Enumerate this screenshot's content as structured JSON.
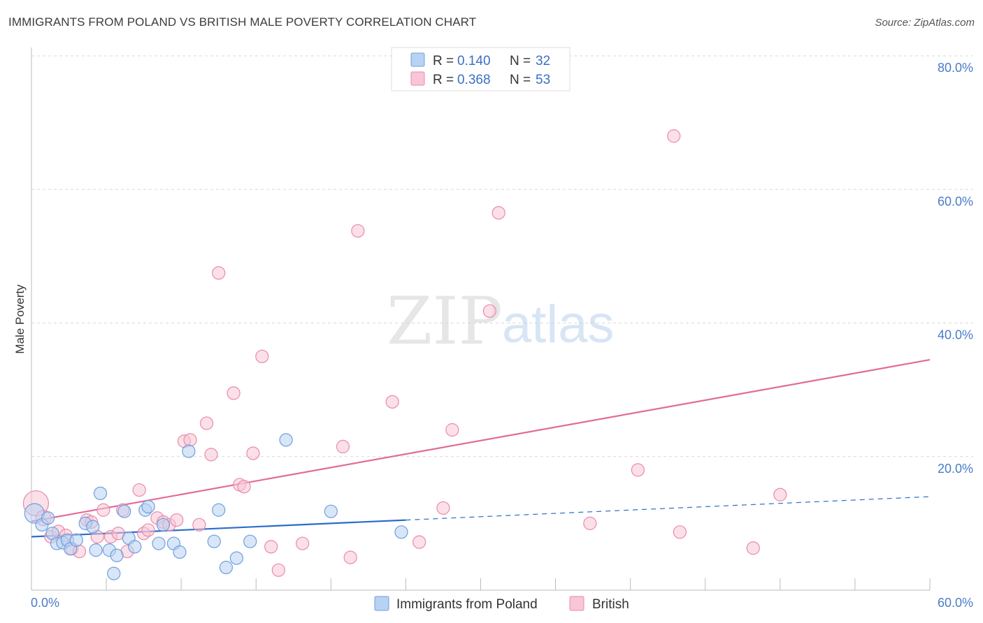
{
  "title": "IMMIGRANTS FROM POLAND VS BRITISH MALE POVERTY CORRELATION CHART",
  "source": "Source: ZipAtlas.com",
  "watermark": {
    "zip": "ZIP",
    "atlas": "atlas"
  },
  "colors": {
    "blue_fill": "#b8d2f3",
    "blue_stroke": "#6f9fdc",
    "blue_line": "#2a6ccc",
    "pink_fill": "#f8c6d6",
    "pink_stroke": "#e98aab",
    "pink_line": "#e26b98",
    "tick_label": "#4a7cc7",
    "grid": "#d8d8d8"
  },
  "legend": {
    "rows": [
      {
        "r_label": "R =",
        "r_value": "0.140",
        "n_label": "N =",
        "n_value": "32",
        "series": "blue"
      },
      {
        "r_label": "R =",
        "r_value": "0.368",
        "n_label": "N =",
        "n_value": "53",
        "series": "pink"
      }
    ]
  },
  "bottom_legend": [
    {
      "label": "Immigrants from Poland",
      "series": "blue"
    },
    {
      "label": "British",
      "series": "pink"
    }
  ],
  "chart_data": {
    "type": "scatter",
    "title": "IMMIGRANTS FROM POLAND VS BRITISH MALE POVERTY CORRELATION CHART",
    "xlabel": "",
    "ylabel": "Male Poverty",
    "xlim": [
      0,
      60
    ],
    "ylim": [
      0,
      80
    ],
    "x_tick_labels": [
      "0.0%",
      "60.0%"
    ],
    "y_ticks": [
      20,
      40,
      60,
      80
    ],
    "y_tick_labels": [
      "20.0%",
      "40.0%",
      "60.0%",
      "80.0%"
    ],
    "grid": true,
    "legend_position": "top-center",
    "series": [
      {
        "name": "Immigrants from Poland",
        "color": "#6f9fdc",
        "r": 0.14,
        "n": 32,
        "trend": {
          "x0": 0,
          "y0": 8.0,
          "x1": 25,
          "y1": 10.5,
          "dash_to_x": 60,
          "dash_to_y": 14.0
        },
        "points": [
          [
            0.2,
            11.5,
            14
          ],
          [
            0.7,
            9.8,
            9
          ],
          [
            1.1,
            10.8,
            9
          ],
          [
            1.4,
            8.5,
            9
          ],
          [
            1.7,
            7.0,
            9
          ],
          [
            2.1,
            7.1,
            9
          ],
          [
            2.4,
            7.5,
            9
          ],
          [
            2.6,
            6.2,
            9
          ],
          [
            3.0,
            7.5,
            9
          ],
          [
            3.6,
            10.0,
            9
          ],
          [
            4.1,
            9.5,
            9
          ],
          [
            4.3,
            6.0,
            9
          ],
          [
            4.6,
            14.5,
            9
          ],
          [
            5.2,
            6.0,
            9
          ],
          [
            5.5,
            2.5,
            9
          ],
          [
            5.7,
            5.2,
            9
          ],
          [
            6.2,
            11.8,
            9
          ],
          [
            6.5,
            7.8,
            9
          ],
          [
            6.9,
            6.5,
            9
          ],
          [
            7.6,
            12.0,
            9
          ],
          [
            7.8,
            12.5,
            9
          ],
          [
            8.5,
            7.0,
            9
          ],
          [
            8.8,
            9.8,
            9
          ],
          [
            9.5,
            7.0,
            9
          ],
          [
            9.9,
            5.7,
            9
          ],
          [
            10.5,
            20.8,
            9
          ],
          [
            12.2,
            7.3,
            9
          ],
          [
            12.5,
            12.0,
            9
          ],
          [
            13.0,
            3.4,
            9
          ],
          [
            13.7,
            4.8,
            9
          ],
          [
            14.6,
            7.3,
            9
          ],
          [
            17.0,
            22.5,
            9
          ],
          [
            20.0,
            11.8,
            9
          ],
          [
            24.7,
            8.7,
            9
          ]
        ]
      },
      {
        "name": "British",
        "color": "#e98aab",
        "r": 0.368,
        "n": 53,
        "trend": {
          "x0": 0,
          "y0": 10.3,
          "x1": 60,
          "y1": 34.5
        },
        "points": [
          [
            0.3,
            13.0,
            18
          ],
          [
            0.8,
            10.8,
            11
          ],
          [
            1.3,
            8.0,
            9
          ],
          [
            1.8,
            8.8,
            9
          ],
          [
            2.3,
            8.2,
            9
          ],
          [
            2.7,
            6.2,
            9
          ],
          [
            3.2,
            5.8,
            9
          ],
          [
            3.7,
            10.5,
            9
          ],
          [
            4.0,
            10.2,
            9
          ],
          [
            4.4,
            8.0,
            9
          ],
          [
            4.8,
            12.0,
            9
          ],
          [
            5.3,
            8.0,
            9
          ],
          [
            5.8,
            8.5,
            9
          ],
          [
            6.1,
            12.0,
            9
          ],
          [
            6.4,
            5.8,
            9
          ],
          [
            7.2,
            15.0,
            9
          ],
          [
            7.5,
            8.5,
            9
          ],
          [
            7.8,
            9.0,
            9
          ],
          [
            8.4,
            10.8,
            9
          ],
          [
            8.8,
            10.2,
            9
          ],
          [
            9.2,
            9.8,
            9
          ],
          [
            9.7,
            10.5,
            9
          ],
          [
            10.2,
            22.3,
            9
          ],
          [
            10.6,
            22.5,
            9
          ],
          [
            11.2,
            9.8,
            9
          ],
          [
            11.7,
            25.0,
            9
          ],
          [
            12.0,
            20.3,
            9
          ],
          [
            12.5,
            47.5,
            9
          ],
          [
            13.5,
            29.5,
            9
          ],
          [
            13.9,
            15.8,
            9
          ],
          [
            14.2,
            15.5,
            9
          ],
          [
            14.8,
            20.5,
            9
          ],
          [
            15.4,
            35.0,
            9
          ],
          [
            16.0,
            6.5,
            9
          ],
          [
            16.5,
            3.0,
            9
          ],
          [
            18.1,
            7.0,
            9
          ],
          [
            20.8,
            21.5,
            9
          ],
          [
            21.3,
            4.9,
            9
          ],
          [
            21.8,
            53.8,
            9
          ],
          [
            24.1,
            28.2,
            9
          ],
          [
            25.9,
            7.2,
            9
          ],
          [
            27.5,
            12.3,
            9
          ],
          [
            28.1,
            24.0,
            9
          ],
          [
            30.6,
            41.8,
            9
          ],
          [
            31.2,
            56.5,
            9
          ],
          [
            37.3,
            10.0,
            9
          ],
          [
            40.5,
            18.0,
            9
          ],
          [
            42.9,
            68.0,
            9
          ],
          [
            43.3,
            8.7,
            9
          ],
          [
            48.2,
            6.3,
            9
          ],
          [
            50.0,
            14.3,
            9
          ]
        ]
      }
    ]
  }
}
